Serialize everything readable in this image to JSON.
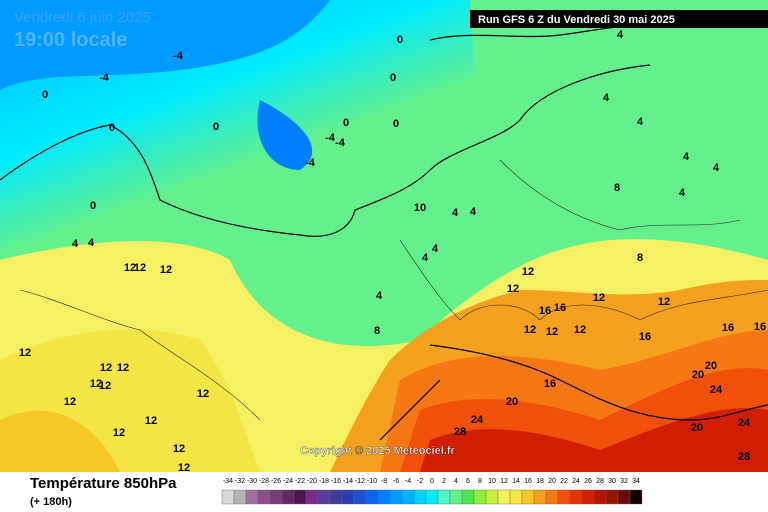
{
  "header": {
    "date": "Vendredi 6 juin 2025",
    "time": "19:00 locale",
    "run": "Run GFS 6 Z du Vendredi 30 mai 2025"
  },
  "copyright": "Copyright © 2025 Meteociel.fr",
  "footer": {
    "title": "Température 850hPa",
    "lead": "(+ 180h)"
  },
  "legend": {
    "ticks": [
      -34,
      -32,
      -30,
      -28,
      -26,
      -24,
      -22,
      -20,
      -18,
      -16,
      -14,
      -12,
      -10,
      -8,
      -6,
      -4,
      -2,
      0,
      2,
      4,
      6,
      8,
      10,
      12,
      14,
      16,
      18,
      20,
      22,
      24,
      26,
      28,
      30,
      32,
      34
    ],
    "colors": [
      "#d8d8d8",
      "#b4b4b4",
      "#a070a0",
      "#8c508c",
      "#783c78",
      "#642864",
      "#501450",
      "#7a2a8a",
      "#5a3a9a",
      "#3c3c96",
      "#283cb4",
      "#1e50d2",
      "#0a64f0",
      "#0080ff",
      "#009bff",
      "#00b4ff",
      "#00d2ff",
      "#00ebff",
      "#50f5c8",
      "#64f08c",
      "#50e650",
      "#8cf03c",
      "#c8f03c",
      "#f5f064",
      "#f5e646",
      "#f5c828",
      "#f5a01e",
      "#f57814",
      "#f0500a",
      "#e63200",
      "#d21e00",
      "#b41400",
      "#961400",
      "#6e0a0a",
      "#140000"
    ]
  },
  "contour_labels": [
    0,
    0,
    0,
    0,
    0,
    0,
    0,
    0,
    -4,
    -4,
    -4,
    -4,
    -4,
    4,
    4,
    4,
    4,
    4,
    4,
    4,
    4,
    4,
    4,
    4,
    4,
    4,
    8,
    8,
    8,
    10,
    12,
    12,
    12,
    12,
    12,
    12,
    12,
    12,
    12,
    12,
    12,
    12,
    12,
    12,
    12,
    12,
    12,
    12,
    12,
    12,
    12,
    16,
    16,
    16,
    16,
    16,
    16,
    20,
    20,
    20,
    20,
    24,
    24,
    24,
    28,
    28
  ]
}
